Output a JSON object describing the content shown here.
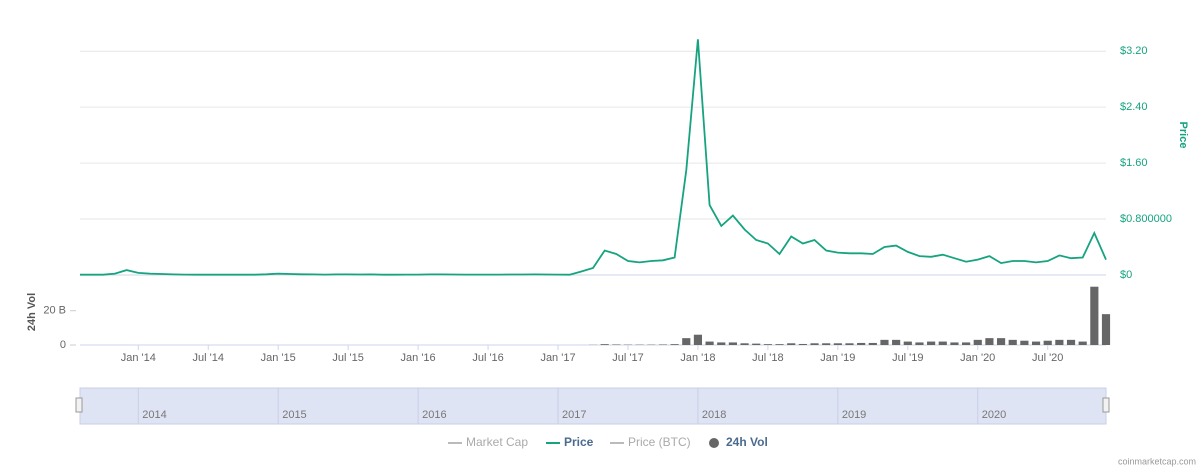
{
  "chart_data": {
    "type": "line",
    "price_axis_label": "Price",
    "volume_axis_label": "24h Vol",
    "watermark": "coinmarketcap.com",
    "x": [
      "2013-08",
      "2013-09",
      "2013-10",
      "2013-11",
      "2013-12",
      "2014-01",
      "2014-02",
      "2014-03",
      "2014-04",
      "2014-05",
      "2014-06",
      "2014-07",
      "2014-08",
      "2014-09",
      "2014-10",
      "2014-11",
      "2014-12",
      "2015-01",
      "2015-02",
      "2015-03",
      "2015-04",
      "2015-05",
      "2015-06",
      "2015-07",
      "2015-08",
      "2015-09",
      "2015-10",
      "2015-11",
      "2015-12",
      "2016-01",
      "2016-02",
      "2016-03",
      "2016-04",
      "2016-05",
      "2016-06",
      "2016-07",
      "2016-08",
      "2016-09",
      "2016-10",
      "2016-11",
      "2016-12",
      "2017-01",
      "2017-02",
      "2017-03",
      "2017-04",
      "2017-05",
      "2017-06",
      "2017-07",
      "2017-08",
      "2017-09",
      "2017-10",
      "2017-11",
      "2017-12",
      "2018-01",
      "2018-02",
      "2018-03",
      "2018-04",
      "2018-05",
      "2018-06",
      "2018-07",
      "2018-08",
      "2018-09",
      "2018-10",
      "2018-11",
      "2018-12",
      "2019-01",
      "2019-02",
      "2019-03",
      "2019-04",
      "2019-05",
      "2019-06",
      "2019-07",
      "2019-08",
      "2019-09",
      "2019-10",
      "2019-11",
      "2019-12",
      "2020-01",
      "2020-02",
      "2020-03",
      "2020-04",
      "2020-05",
      "2020-06",
      "2020-07",
      "2020-08",
      "2020-09",
      "2020-10",
      "2020-11",
      "2020-12"
    ],
    "series": [
      {
        "name": "Market Cap",
        "color": "#bbbbbb",
        "visible": false
      },
      {
        "name": "Price",
        "color": "#16a37f",
        "visible": true,
        "axis": "y",
        "values": [
          0.005,
          0.005,
          0.005,
          0.02,
          0.07,
          0.03,
          0.02,
          0.015,
          0.008,
          0.006,
          0.005,
          0.005,
          0.005,
          0.005,
          0.005,
          0.005,
          0.01,
          0.02,
          0.015,
          0.01,
          0.008,
          0.006,
          0.008,
          0.008,
          0.007,
          0.008,
          0.005,
          0.005,
          0.006,
          0.006,
          0.008,
          0.008,
          0.007,
          0.006,
          0.006,
          0.006,
          0.006,
          0.007,
          0.007,
          0.008,
          0.007,
          0.006,
          0.004,
          0.05,
          0.1,
          0.35,
          0.3,
          0.2,
          0.18,
          0.2,
          0.21,
          0.25,
          1.5,
          3.37,
          1.0,
          0.7,
          0.85,
          0.65,
          0.5,
          0.45,
          0.3,
          0.55,
          0.45,
          0.5,
          0.35,
          0.32,
          0.31,
          0.31,
          0.3,
          0.4,
          0.42,
          0.33,
          0.27,
          0.26,
          0.29,
          0.24,
          0.19,
          0.22,
          0.27,
          0.17,
          0.2,
          0.2,
          0.18,
          0.2,
          0.28,
          0.24,
          0.25,
          0.6,
          0.22
        ]
      },
      {
        "name": "Price (BTC)",
        "color": "#bbbbbb",
        "visible": false
      },
      {
        "name": "24h Vol",
        "color": "#666666",
        "visible": true,
        "axis": "y3",
        "values": [
          1000000,
          1000000,
          1000000,
          2000000,
          5000000,
          3000000,
          2000000,
          2000000,
          1000000,
          1000000,
          1000000,
          1000000,
          1000000,
          1000000,
          1000000,
          1000000,
          1000000,
          2000000,
          1000000,
          1000000,
          1000000,
          1000000,
          1000000,
          1000000,
          1000000,
          1000000,
          1000000,
          1000000,
          1000000,
          1000000,
          1000000,
          1000000,
          1000000,
          1000000,
          1000000,
          1000000,
          1000000,
          1000000,
          1000000,
          1000000,
          1000000,
          1000000,
          1000000,
          10000000,
          100000000,
          500000000,
          300000000,
          200000000,
          200000000,
          200000000,
          300000000,
          500000000,
          4000000000,
          6000000000,
          2000000000,
          1500000000,
          1500000000,
          1000000000,
          800000000,
          500000000,
          500000000,
          1000000000,
          600000000,
          1000000000,
          1000000000,
          1000000000,
          1000000000,
          1200000000,
          1200000000,
          3000000000,
          3000000000,
          2000000000,
          1500000000,
          2000000000,
          2000000000,
          1500000000,
          1500000000,
          3000000000,
          4000000000,
          4000000000,
          3000000000,
          2500000000,
          2000000000,
          2500000000,
          3000000000,
          3000000000,
          2000000000,
          34000000000,
          18000000000
        ]
      }
    ],
    "xlim": [
      "2013-08",
      "2020-12"
    ],
    "xticks": [
      {
        "value": "2014-01",
        "label": "Jan '14"
      },
      {
        "value": "2014-07",
        "label": "Jul '14"
      },
      {
        "value": "2015-01",
        "label": "Jan '15"
      },
      {
        "value": "2015-07",
        "label": "Jul '15"
      },
      {
        "value": "2016-01",
        "label": "Jan '16"
      },
      {
        "value": "2016-07",
        "label": "Jul '16"
      },
      {
        "value": "2017-01",
        "label": "Jan '17"
      },
      {
        "value": "2017-07",
        "label": "Jul '17"
      },
      {
        "value": "2018-01",
        "label": "Jan '18"
      },
      {
        "value": "2018-07",
        "label": "Jul '18"
      },
      {
        "value": "2019-01",
        "label": "Jan '19"
      },
      {
        "value": "2019-07",
        "label": "Jul '19"
      },
      {
        "value": "2020-01",
        "label": "Jan '20"
      },
      {
        "value": "2020-07",
        "label": "Jul '20"
      }
    ],
    "ylim": [
      0,
      3.36
    ],
    "yticks": [
      {
        "value": 0,
        "label": "$0"
      },
      {
        "value": 0.8,
        "label": "$0.800000"
      },
      {
        "value": 1.6,
        "label": "$1.60"
      },
      {
        "value": 2.4,
        "label": "$2.40"
      },
      {
        "value": 3.2,
        "label": "$3.20"
      }
    ],
    "y3lim": [
      0,
      35000000000
    ],
    "y3ticks": [
      0,
      {
        "value": 20000000000,
        "label": "20 B"
      }
    ],
    "grid": true,
    "navigator_years": [
      "2014",
      "2015",
      "2016",
      "2017",
      "2018",
      "2019",
      "2020"
    ]
  }
}
